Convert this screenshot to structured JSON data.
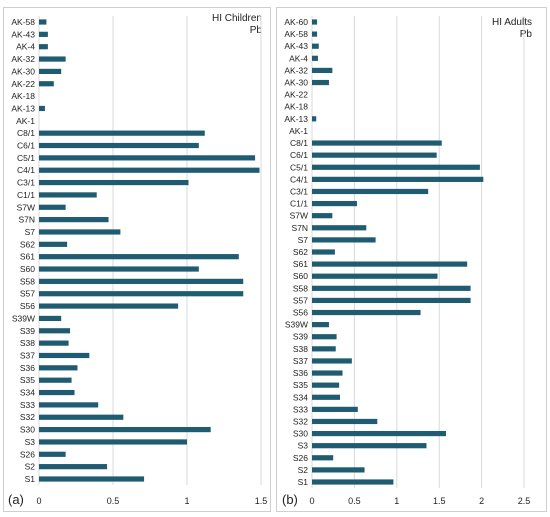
{
  "chart_data": [
    {
      "type": "bar",
      "orientation": "horizontal",
      "panel_label": "(a)",
      "title": "HI Children",
      "subtitle": "Pb",
      "xlim": [
        0,
        1.5
      ],
      "xticks": [
        "0",
        "0.5",
        "1",
        "1.5"
      ],
      "grid": true,
      "color": "#1f5c72",
      "categories": [
        "AK-58",
        "AK-43",
        "AK-4",
        "AK-32",
        "AK-30",
        "AK-22",
        "AK-18",
        "AK-13",
        "AK-1",
        "C8/1",
        "C6/1",
        "C5/1",
        "C4/1",
        "C3/1",
        "C1/1",
        "S7W",
        "S7N",
        "S7",
        "S62",
        "S61",
        "S60",
        "S58",
        "S57",
        "S56",
        "S39W",
        "S39",
        "S38",
        "S37",
        "S36",
        "S35",
        "S34",
        "S33",
        "S32",
        "S30",
        "S3",
        "S26",
        "S2",
        "S1"
      ],
      "values": [
        0.05,
        0.06,
        0.06,
        0.18,
        0.15,
        0.1,
        0,
        0.04,
        0,
        1.12,
        1.08,
        1.46,
        1.49,
        1.01,
        0.39,
        0.18,
        0.47,
        0.55,
        0.19,
        1.35,
        1.08,
        1.38,
        1.38,
        0.94,
        0.15,
        0.21,
        0.2,
        0.34,
        0.26,
        0.22,
        0.24,
        0.4,
        0.57,
        1.16,
        1.0,
        0.18,
        0.46,
        0.71
      ]
    },
    {
      "type": "bar",
      "orientation": "horizontal",
      "panel_label": "(b)",
      "title": "HI Adults",
      "subtitle": "Pb",
      "xlim": [
        0,
        2.5
      ],
      "xticks": [
        "0",
        "0.5",
        "1",
        "1.5",
        "2",
        "2.5"
      ],
      "grid": true,
      "color": "#1f5c72",
      "categories": [
        "AK-60",
        "AK-58",
        "AK-43",
        "AK-4",
        "AK-32",
        "AK-30",
        "AK-22",
        "AK-18",
        "AK-13",
        "AK-1",
        "C8/1",
        "C6/1",
        "C5/1",
        "C4/1",
        "C3/1",
        "C1/1",
        "S7W",
        "S7N",
        "S7",
        "S62",
        "S61",
        "S60",
        "S58",
        "S57",
        "S56",
        "S39W",
        "S39",
        "S38",
        "S37",
        "S36",
        "S35",
        "S34",
        "S33",
        "S32",
        "S30",
        "S3",
        "S26",
        "S2",
        "S1"
      ],
      "values": [
        0.06,
        0.06,
        0.08,
        0.07,
        0.24,
        0.2,
        0,
        0,
        0.05,
        0,
        1.53,
        1.47,
        1.98,
        2.02,
        1.37,
        0.53,
        0.24,
        0.64,
        0.75,
        0.27,
        1.83,
        1.48,
        1.87,
        1.87,
        1.28,
        0.2,
        0.29,
        0.28,
        0.47,
        0.36,
        0.32,
        0.33,
        0.54,
        0.77,
        1.58,
        1.35,
        0.25,
        0.62,
        0.96
      ]
    }
  ]
}
